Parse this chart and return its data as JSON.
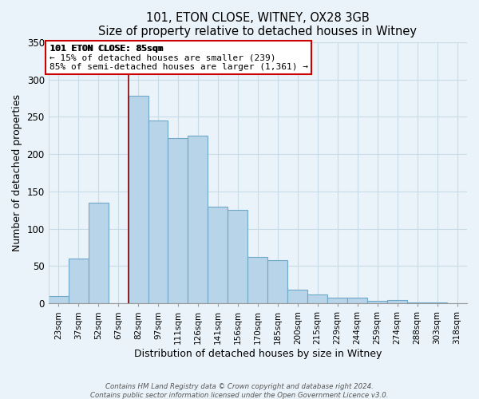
{
  "title": "101, ETON CLOSE, WITNEY, OX28 3GB",
  "subtitle": "Size of property relative to detached houses in Witney",
  "xlabel": "Distribution of detached houses by size in Witney",
  "ylabel": "Number of detached properties",
  "footer_line1": "Contains HM Land Registry data © Crown copyright and database right 2024.",
  "footer_line2": "Contains public sector information licensed under the Open Government Licence v3.0.",
  "categories": [
    "23sqm",
    "37sqm",
    "52sqm",
    "67sqm",
    "82sqm",
    "97sqm",
    "111sqm",
    "126sqm",
    "141sqm",
    "156sqm",
    "170sqm",
    "185sqm",
    "200sqm",
    "215sqm",
    "229sqm",
    "244sqm",
    "259sqm",
    "274sqm",
    "288sqm",
    "303sqm",
    "318sqm"
  ],
  "values": [
    10,
    60,
    135,
    0,
    278,
    245,
    222,
    225,
    130,
    125,
    62,
    58,
    18,
    12,
    8,
    8,
    3,
    5,
    1,
    1,
    0
  ],
  "bar_color": "#b8d4e8",
  "bar_edge_color": "#6fa8c8",
  "vline_color": "#8b0000",
  "vline_x_index": 4,
  "ylim": [
    0,
    350
  ],
  "yticks": [
    0,
    50,
    100,
    150,
    200,
    250,
    300,
    350
  ],
  "annotation_title": "101 ETON CLOSE: 85sqm",
  "annotation_line1": "← 15% of detached houses are smaller (239)",
  "annotation_line2": "85% of semi-detached houses are larger (1,361) →",
  "box_facecolor": "white",
  "box_edgecolor": "#cc0000",
  "grid_color": "#c8dce8",
  "bg_color": "#eaf3f9"
}
